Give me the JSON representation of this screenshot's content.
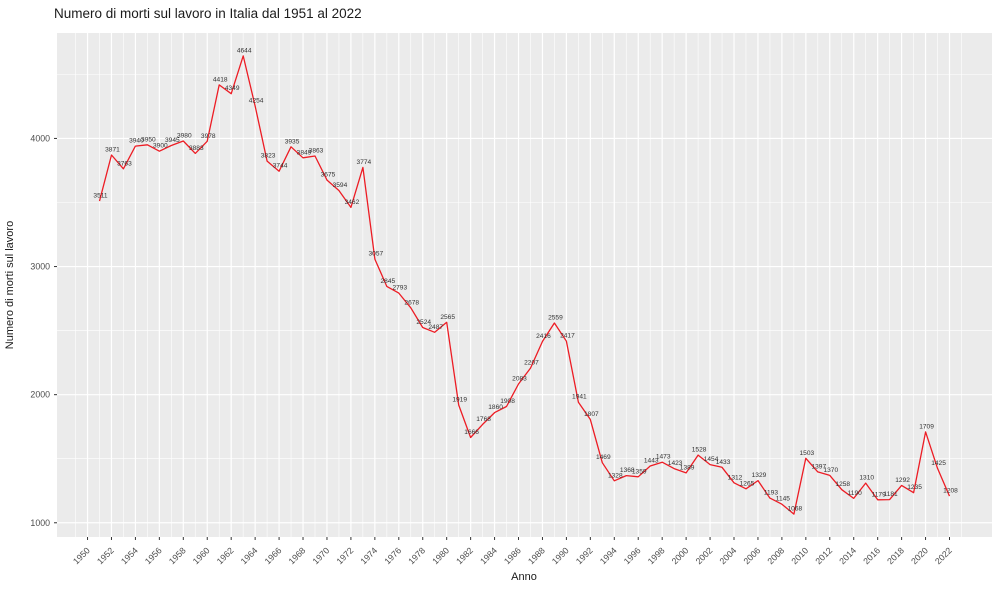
{
  "title": "Numero di morti sul lavoro in Italia dal 1951 al 2022",
  "chart_data": {
    "type": "line",
    "title": "Numero di morti sul lavoro in Italia dal 1951 al 2022",
    "xlabel": "Anno",
    "ylabel": "Numero di morti sul lavoro",
    "x": [
      1951,
      1952,
      1953,
      1954,
      1955,
      1956,
      1957,
      1958,
      1959,
      1960,
      1961,
      1962,
      1963,
      1964,
      1965,
      1966,
      1967,
      1968,
      1969,
      1970,
      1971,
      1972,
      1973,
      1974,
      1975,
      1976,
      1977,
      1978,
      1979,
      1980,
      1981,
      1982,
      1983,
      1984,
      1985,
      1986,
      1987,
      1988,
      1989,
      1990,
      1991,
      1992,
      1993,
      1994,
      1995,
      1996,
      1997,
      1998,
      1999,
      2000,
      2001,
      2002,
      2003,
      2004,
      2005,
      2006,
      2007,
      2008,
      2009,
      2010,
      2011,
      2012,
      2013,
      2014,
      2015,
      2016,
      2017,
      2018,
      2019,
      2020,
      2021,
      2022
    ],
    "values": [
      3511,
      3871,
      3763,
      3940,
      3950,
      3900,
      3945,
      3980,
      3883,
      3978,
      4418,
      4349,
      4644,
      4254,
      3823,
      3744,
      3935,
      3849,
      3863,
      3675,
      3594,
      3462,
      3774,
      3057,
      2845,
      2793,
      2678,
      2524,
      2487,
      2565,
      1919,
      1666,
      1768,
      1860,
      1908,
      2083,
      2207,
      2416,
      2559,
      2417,
      1941,
      1807,
      1469,
      1328,
      1368,
      1359,
      1443,
      1473,
      1423,
      1389,
      1528,
      1454,
      1433,
      1312,
      1265,
      1329,
      1193,
      1145,
      1068,
      1503,
      1397,
      1370,
      1258,
      1190,
      1310,
      1179,
      1181,
      1292,
      1235,
      1709,
      1425,
      1208
    ],
    "point_labels_visible": true,
    "x_ticks": [
      1950,
      1952,
      1954,
      1956,
      1958,
      1960,
      1962,
      1964,
      1966,
      1968,
      1970,
      1972,
      1974,
      1976,
      1978,
      1980,
      1982,
      1984,
      1986,
      1988,
      1990,
      1992,
      1994,
      1996,
      1998,
      2000,
      2002,
      2004,
      2006,
      2008,
      2010,
      2012,
      2014,
      2016,
      2018,
      2020,
      2022
    ],
    "y_ticks": [
      1000,
      2000,
      3000,
      4000
    ],
    "y_minor_ticks": [
      1500,
      2500,
      3500,
      4500
    ],
    "xlim": [
      1947.45,
      2025.55
    ],
    "ylim": [
      889,
      4823
    ],
    "grid": "major and minor, white on gray panel",
    "legend": "none",
    "colors": {
      "line": "#ED1C24",
      "panel_bg": "#EBEBEB",
      "grid": "#FFFFFF",
      "tick_label": "#4D4D4D",
      "point_label": "#333333",
      "title_text": "#1B1B1B"
    }
  }
}
